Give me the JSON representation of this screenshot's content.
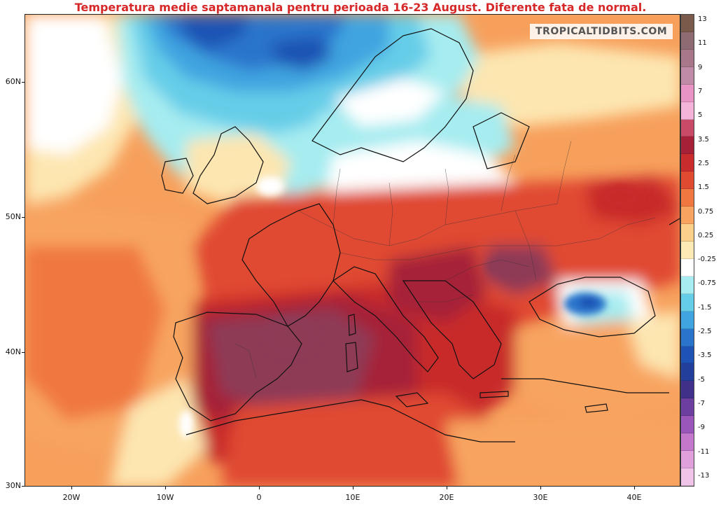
{
  "title": "Temperatura medie saptamanala pentru perioada 16-23 August. Diferente fata de normal.",
  "watermark": "TROPICALTIDBITS.COM",
  "axes": {
    "lat_labels": [
      "60N",
      "50N",
      "40N",
      "30N"
    ],
    "lon_labels": [
      "20W",
      "10W",
      "0",
      "10E",
      "20E",
      "30E",
      "40E"
    ]
  },
  "colorbar": {
    "labels": [
      "13",
      "11",
      "9",
      "7",
      "5",
      "3.5",
      "2.5",
      "1.5",
      "0.75",
      "0.25",
      "-0.25",
      "-0.75",
      "-1.5",
      "-2.5",
      "-3.5",
      "-5",
      "-7",
      "-9",
      "-11",
      "-13"
    ],
    "colors": [
      "#7a5a4a",
      "#8e6a72",
      "#a8788a",
      "#c08ba6",
      "#e895c6",
      "#f4b3d8",
      "#c84a66",
      "#a62038",
      "#c82c2c",
      "#e04a30",
      "#f07840",
      "#f8a460",
      "#fcd08a",
      "#fdeab4",
      "#ffffff",
      "#a6ecf0",
      "#66cde8",
      "#40a4e0",
      "#2a74cc",
      "#1e52b4",
      "#223f9c",
      "#40308a",
      "#6b3ea0",
      "#9a56ba",
      "#c478cc",
      "#e0a0dc",
      "#f0c4e8"
    ]
  },
  "legend_colors": {
    "warm_max": "#8a2a4a",
    "warm_strong": "#b82030",
    "warm": "#e04a30",
    "mild": "#f8a460",
    "neutral": "#ffffff",
    "cool": "#66cde8",
    "cold": "#1e52b4"
  }
}
